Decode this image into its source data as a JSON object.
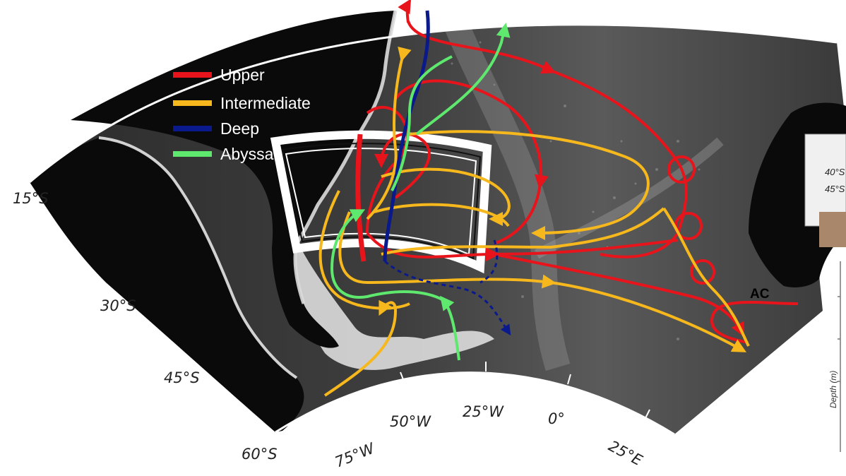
{
  "legend": {
    "items": [
      {
        "label": "Upper",
        "color": "#e8141c"
      },
      {
        "label": "Intermediate",
        "color": "#f6b81c"
      },
      {
        "label": "Deep",
        "color": "#0a1a8c"
      },
      {
        "label": "Abyssal",
        "color": "#5fe86e"
      }
    ]
  },
  "latitude_labels": [
    "15°S",
    "30°S",
    "45°S",
    "60°S"
  ],
  "longitude_labels": [
    "75°W",
    "50°W",
    "25°W",
    "0°",
    "25°E"
  ],
  "region_label": "AC",
  "inset": {
    "latitude_labels": [
      "40°S",
      "45°S"
    ],
    "axis_label": "Depth (m)"
  }
}
